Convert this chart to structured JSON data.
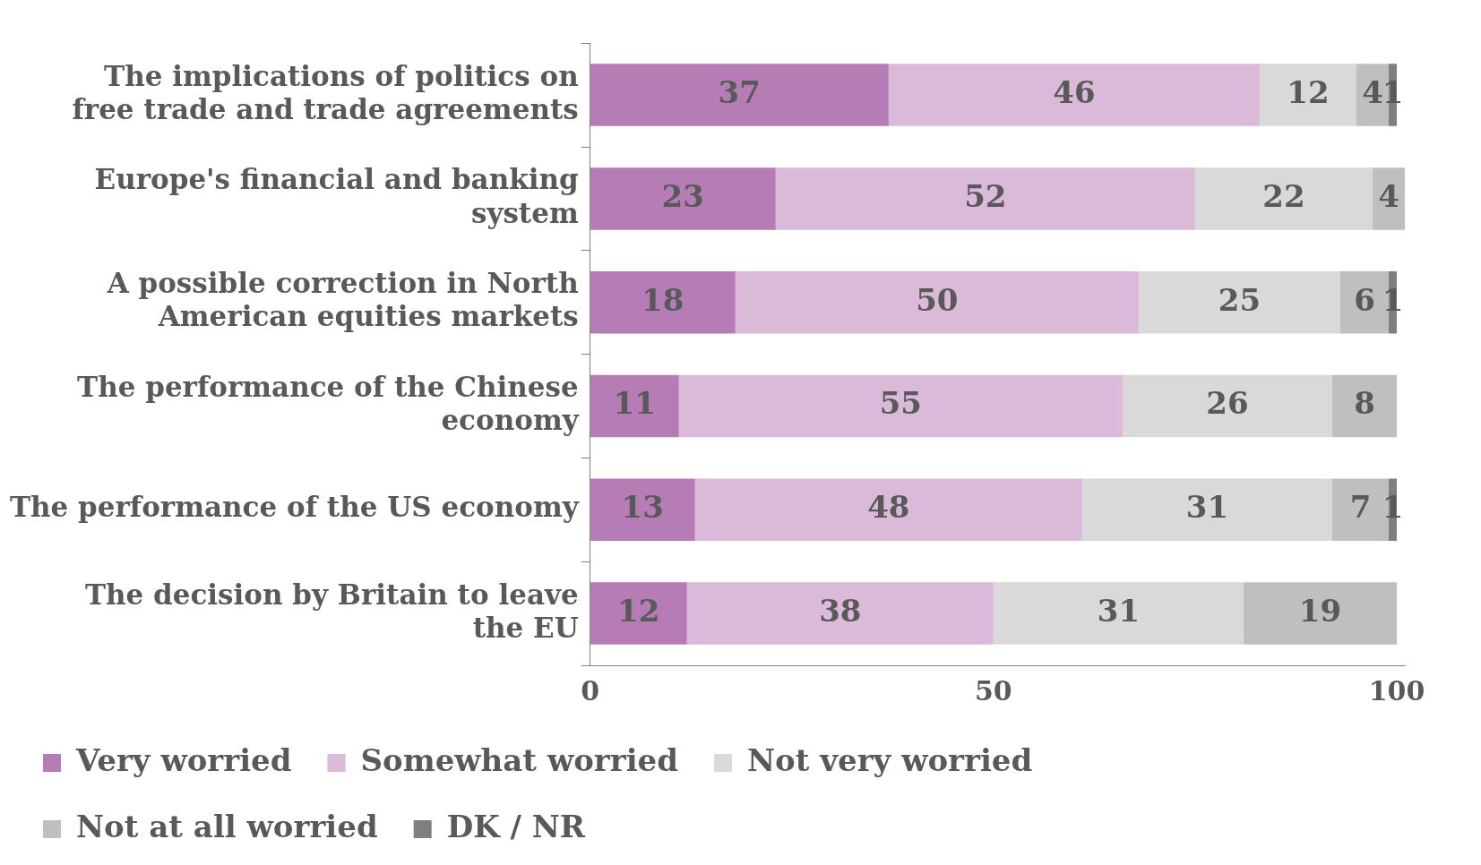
{
  "chart_data": {
    "type": "bar",
    "orientation": "horizontal",
    "stacked": true,
    "categories": [
      "The implications of politics on free trade and trade agreements",
      "Europe's financial and banking system",
      "A possible correction in North American equities markets",
      "The performance of the Chinese economy",
      "The performance of the US economy",
      "The decision by Britain to leave the EU"
    ],
    "series": [
      {
        "name": "Very worried",
        "color": "#b57cb5",
        "values": [
          37,
          23,
          18,
          11,
          13,
          12
        ]
      },
      {
        "name": "Somewhat worried",
        "color": "#dbb9d9",
        "values": [
          46,
          52,
          50,
          55,
          48,
          38
        ]
      },
      {
        "name": "Not very worried",
        "color": "#d9d9d9",
        "values": [
          12,
          22,
          25,
          26,
          31,
          31
        ]
      },
      {
        "name": "Not at all worried",
        "color": "#bfbfbf",
        "values": [
          4,
          4,
          6,
          8,
          7,
          19
        ]
      },
      {
        "name": "DK / NR",
        "color": "#7f7f7f",
        "values": [
          1,
          null,
          1,
          null,
          1,
          null
        ]
      }
    ],
    "xlim": [
      0,
      101
    ],
    "xticks": [
      0,
      50,
      100
    ],
    "grid": false,
    "legend": "bottom",
    "data_labels": true
  }
}
